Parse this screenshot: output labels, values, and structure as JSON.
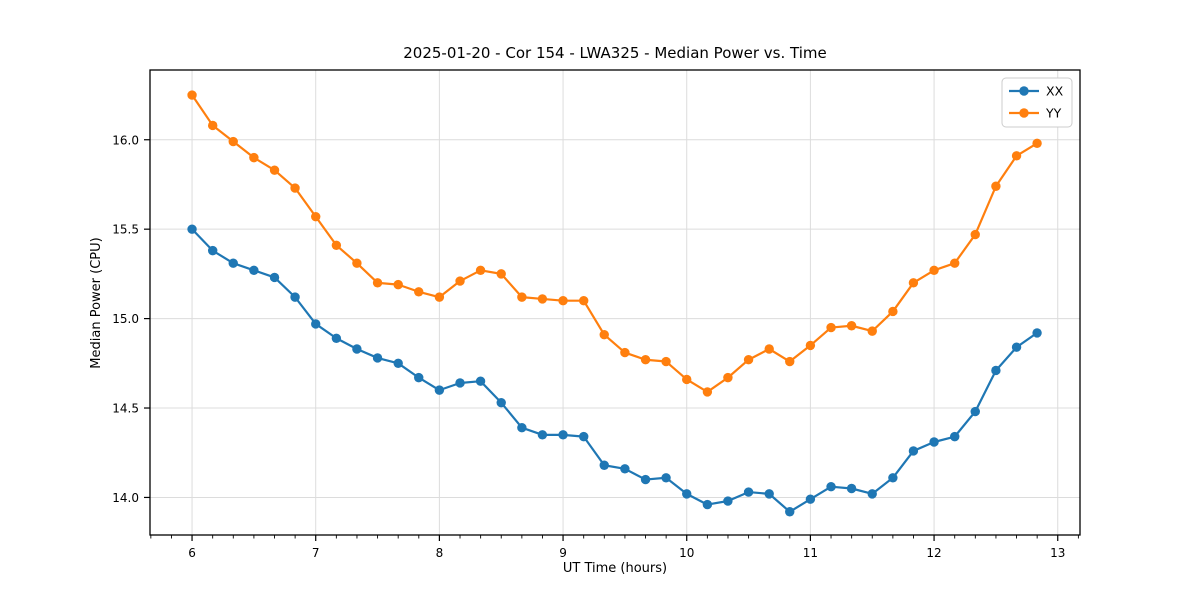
{
  "chart_data": {
    "type": "line",
    "title": "2025-01-20 - Cor 154 - LWA325 - Median Power vs. Time",
    "xlabel": "UT Time (hours)",
    "ylabel": "Median Power (CPU)",
    "xlim": [
      5.66,
      13.18
    ],
    "ylim": [
      13.79,
      16.39
    ],
    "x_major_ticks": [
      6,
      7,
      8,
      9,
      10,
      11,
      12,
      13
    ],
    "x_minor_step": 0.16667,
    "y_major_ticks": [
      14.0,
      14.5,
      15.0,
      15.5,
      16.0
    ],
    "grid": true,
    "grid_color": "#dcdcdc",
    "legend_position": "upper right",
    "x": [
      6.0,
      6.167,
      6.333,
      6.5,
      6.667,
      6.833,
      7.0,
      7.167,
      7.333,
      7.5,
      7.667,
      7.833,
      8.0,
      8.167,
      8.333,
      8.5,
      8.667,
      8.833,
      9.0,
      9.167,
      9.333,
      9.5,
      9.667,
      9.833,
      10.0,
      10.167,
      10.333,
      10.5,
      10.667,
      10.833,
      11.0,
      11.167,
      11.333,
      11.5,
      11.667,
      11.833,
      12.0,
      12.167,
      12.333,
      12.5,
      12.667,
      12.833
    ],
    "series": [
      {
        "name": "XX",
        "color": "#1f77b4",
        "values": [
          15.5,
          15.38,
          15.31,
          15.27,
          15.23,
          15.12,
          14.97,
          14.89,
          14.83,
          14.78,
          14.75,
          14.67,
          14.6,
          14.64,
          14.65,
          14.53,
          14.39,
          14.35,
          14.35,
          14.34,
          14.18,
          14.16,
          14.1,
          14.11,
          14.02,
          13.96,
          13.98,
          14.03,
          14.02,
          13.92,
          13.99,
          14.06,
          14.05,
          14.02,
          14.11,
          14.26,
          14.31,
          14.34,
          14.48,
          14.71,
          14.84,
          14.92
        ]
      },
      {
        "name": "YY",
        "color": "#ff7f0e",
        "values": [
          16.25,
          16.08,
          15.99,
          15.9,
          15.83,
          15.73,
          15.57,
          15.41,
          15.31,
          15.2,
          15.19,
          15.15,
          15.12,
          15.21,
          15.27,
          15.25,
          15.12,
          15.11,
          15.1,
          15.1,
          14.91,
          14.81,
          14.77,
          14.76,
          14.66,
          14.59,
          14.67,
          14.77,
          14.83,
          14.76,
          14.85,
          14.95,
          14.96,
          14.93,
          15.04,
          15.2,
          15.27,
          15.31,
          15.47,
          15.74,
          15.91,
          15.98
        ]
      }
    ]
  }
}
